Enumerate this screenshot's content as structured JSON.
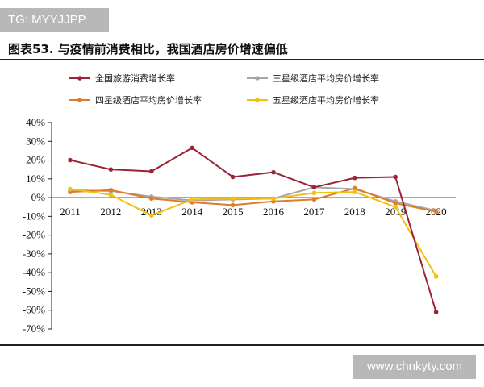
{
  "watermarks": {
    "top_left": "TG: MYYJJPP",
    "bottom_right": "www.chnkyty.com"
  },
  "figure_title": "图表53. 与疫情前消费相比，我国酒店房价增速偏低",
  "chart_data": {
    "type": "line",
    "title": "图表53. 与疫情前消费相比，我国酒店房价增速偏低",
    "xlabel": "",
    "ylabel": "",
    "categories": [
      "2011",
      "2012",
      "2013",
      "2014",
      "2015",
      "2016",
      "2017",
      "2018",
      "2019",
      "2020"
    ],
    "ylim": [
      -70,
      40
    ],
    "yticks": [
      40,
      30,
      20,
      10,
      0,
      -10,
      -20,
      -30,
      -40,
      -50,
      -60,
      -70
    ],
    "ytick_labels": [
      "40%",
      "30%",
      "20%",
      "10%",
      "0%",
      "-10%",
      "-20%",
      "-30%",
      "-40%",
      "-50%",
      "-60%",
      "-70%"
    ],
    "legend_position": "top",
    "grid": false,
    "series": [
      {
        "name": "全国旅游消费增长率",
        "color": "#9b2335",
        "values": [
          20,
          15,
          14,
          26.5,
          11,
          13.5,
          5.5,
          10.5,
          11,
          -61
        ]
      },
      {
        "name": "三星级酒店平均房价增长率",
        "color": "#a6a6a6",
        "values": [
          4,
          3.5,
          0.5,
          -1.5,
          -1,
          -0.5,
          5.5,
          4.5,
          -2,
          -7
        ]
      },
      {
        "name": "四星级酒店平均房价增长率",
        "color": "#e07b2a",
        "values": [
          3,
          4,
          -0.5,
          -2.5,
          -4,
          -2,
          -1,
          5,
          -3,
          -7.5
        ]
      },
      {
        "name": "五星级酒店平均房价增长率",
        "color": "#f2c010",
        "values": [
          4.5,
          1.5,
          -9.5,
          -1,
          -0.5,
          -0.5,
          2.5,
          3,
          -5,
          -42
        ]
      }
    ]
  }
}
